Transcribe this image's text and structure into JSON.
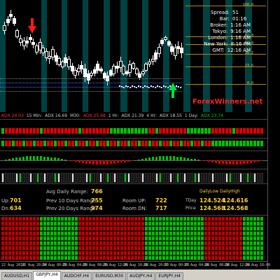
{
  "info_panel": {
    "spread_label": "Spread:",
    "spread_value": "51",
    "bar_label": "Bar:",
    "bar_value": "01:16",
    "broker_label": "Broker:",
    "broker_value": "1:16 AM",
    "tokyo_label": "Tokyo:",
    "tokyo_value": "9:16 AM",
    "london_label": "London:",
    "london_value": "1:16 AM",
    "newyork_label": "New York:",
    "newyork_value": "8:16 PM",
    "gmt_label": "GMT:",
    "gmt_value": "12:16 AM"
  },
  "fib_levels": [
    "100.0",
    "61.8",
    "50.0",
    "38.2",
    "23.6",
    "0.0"
  ],
  "watermark": "ForexWinners.net",
  "adx_row": {
    "m5": "ADX 24.03",
    "m15": "15 Min:",
    "m15_adx": "ADX 16.69",
    "m30": "M30:",
    "m30_adx": "ADX 25.68",
    "h1": "1 Hr:",
    "h1_adx": "ADX 21.39",
    "h4": "4 Hr:",
    "h4_adx": "ADX 18.55",
    "d1": "1 Day:",
    "d1_adx": "ADX 23.74"
  },
  "stats": {
    "up_label": "Up:",
    "up_value": "701",
    "dn_label": "Dn:",
    "dn_value": "634",
    "avg_label": "Avg Daily Range:",
    "avg_value": "766",
    "prev10_label": "Prev 10 Days Range:",
    "prev10_value": "755",
    "prev20_label": "Prev 20 Days Range:",
    "prev20_value": "974",
    "roomup_label": "Room UP:",
    "roomup_value": "722",
    "roomdn_label": "Room DN:",
    "roomdn_value": "717",
    "daily_low_label": "DailyLow",
    "daily_high_label": "DailyHigh",
    "tdays_label": "TDay",
    "tdays_low": "124.524",
    "tdays_high": "124.616",
    "price_label": "Price",
    "price_low": "124.568",
    "price_high": "124.568"
  },
  "time_axis": [
    "22 Aug 2014",
    "23 Aug 20:00",
    "24 Aug 00:00",
    "25 Aug 04:00",
    "25 Aug 08:00",
    "25 Aug 12:00",
    "26 Aug 16:00",
    "26 Aug 20:00",
    "27 Aug 00:00",
    "27 Aug 04:00",
    "28 Aug 08:00",
    "28 Aug 12:00",
    "29 Aug 16:00"
  ],
  "tabs": [
    "AUDUSD,H1",
    "GBPJPY,H4",
    "AUDCHF,H4",
    "EURUSD,M30",
    "AUDJPY,H4",
    "EURJPY,H4"
  ],
  "active_tab": 1,
  "colors": {
    "band": "#007878",
    "bull": "#00c000",
    "bear": "#e00000",
    "fib": "#b8860b",
    "value": "#ffd23a"
  }
}
